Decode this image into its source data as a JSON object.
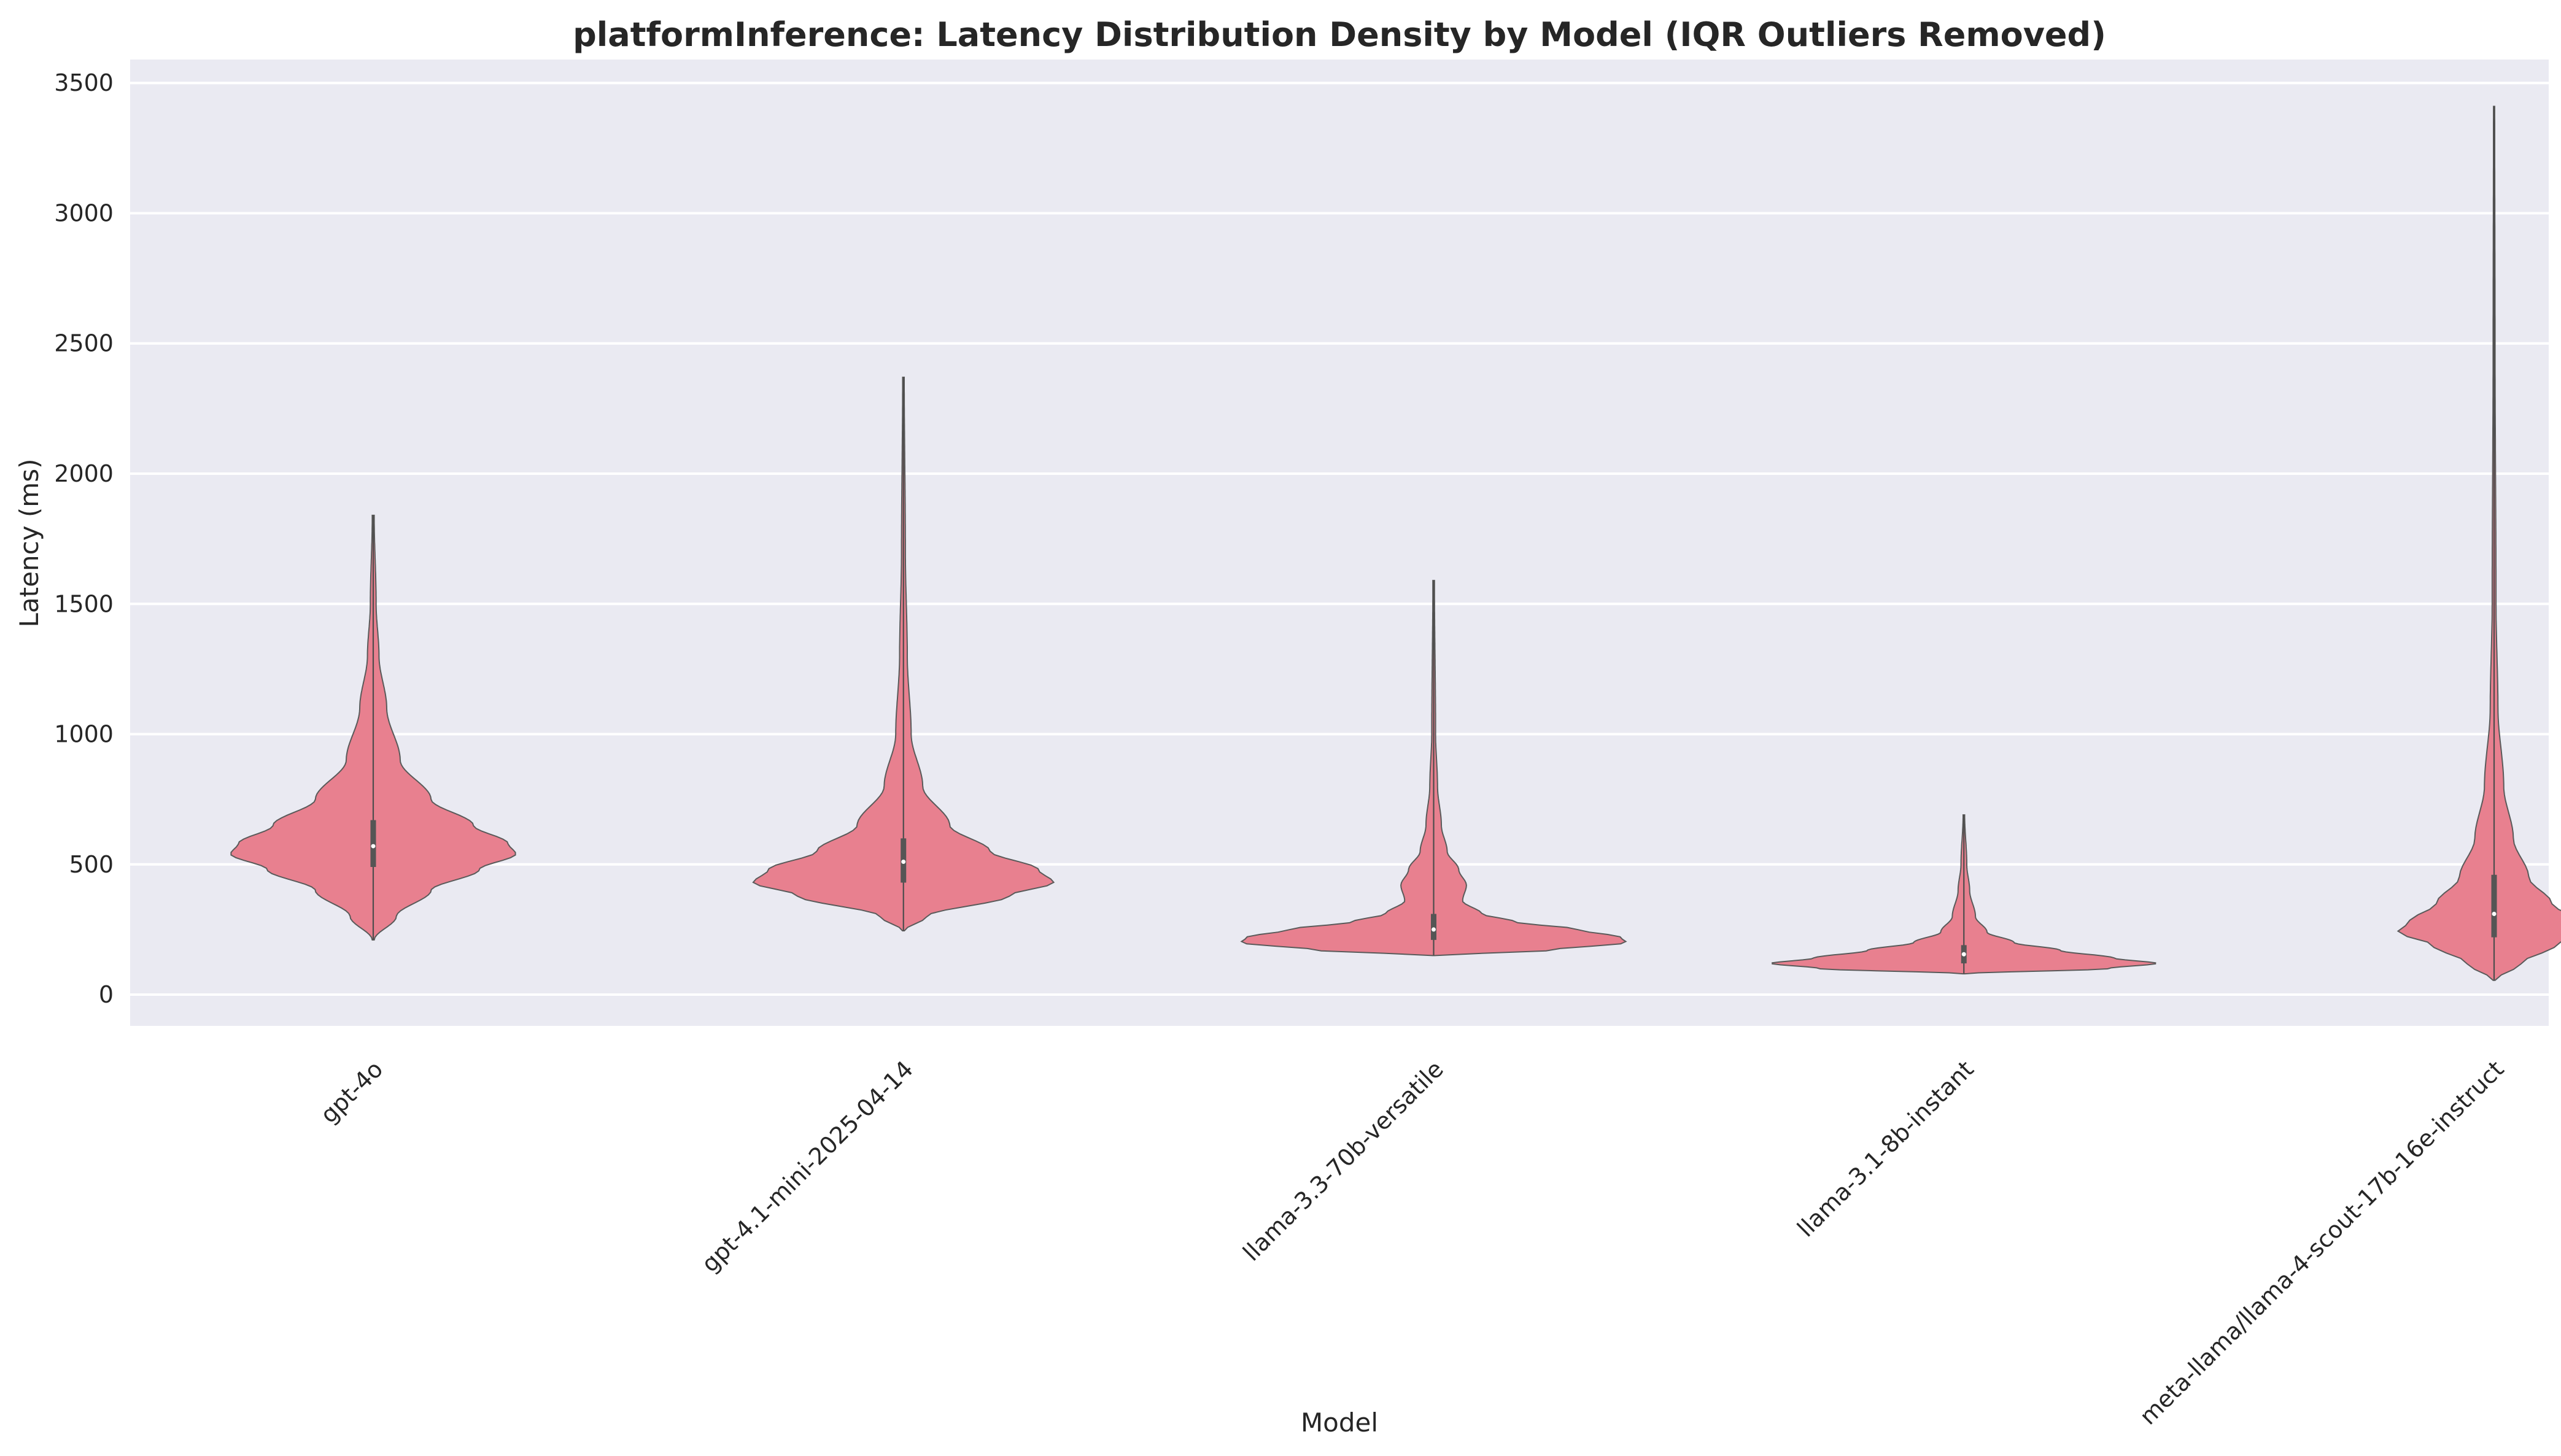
{
  "chart_data": {
    "type": "violin",
    "title": "platformInference: Latency Distribution Density by Model (IQR Outliers Removed)",
    "xlabel": "Model",
    "ylabel": "Latency (ms)",
    "ylim": [
      -120,
      3590
    ],
    "yticks": [
      0,
      500,
      1000,
      1500,
      2000,
      2500,
      3000,
      3500
    ],
    "grid": true,
    "legend": "none",
    "colors": {
      "violin": "#e8808f",
      "background": "#eaeaf2",
      "grid": "#ffffff"
    },
    "categories": [
      "gpt-4o",
      "gpt-4.1-mini-2025-04-14",
      "llama-3.3-70b-versatile",
      "llama-3.1-8b-instant",
      "meta-llama/llama-4-scout-17b-16e-instruct"
    ],
    "series": [
      {
        "category": "gpt-4o",
        "min": 210,
        "max": 1840,
        "q1": 490,
        "median": 570,
        "q3": 670,
        "density": [
          [
            210,
            0.005
          ],
          [
            300,
            0.12
          ],
          [
            400,
            0.3
          ],
          [
            480,
            0.55
          ],
          [
            540,
            0.74
          ],
          [
            580,
            0.7
          ],
          [
            650,
            0.52
          ],
          [
            750,
            0.3
          ],
          [
            900,
            0.14
          ],
          [
            1100,
            0.07
          ],
          [
            1300,
            0.03
          ],
          [
            1500,
            0.015
          ],
          [
            1840,
            0.005
          ]
        ]
      },
      {
        "category": "gpt-4.1-mini-2025-04-14",
        "min": 245,
        "max": 2370,
        "q1": 430,
        "median": 510,
        "q3": 600,
        "density": [
          [
            245,
            0.005
          ],
          [
            300,
            0.12
          ],
          [
            380,
            0.55
          ],
          [
            430,
            0.78
          ],
          [
            480,
            0.7
          ],
          [
            550,
            0.45
          ],
          [
            650,
            0.24
          ],
          [
            800,
            0.1
          ],
          [
            1000,
            0.04
          ],
          [
            1300,
            0.02
          ],
          [
            1700,
            0.01
          ],
          [
            2370,
            0.004
          ]
        ]
      },
      {
        "category": "llama-3.3-70b-versatile",
        "min": 150,
        "max": 1590,
        "q1": 210,
        "median": 250,
        "q3": 310,
        "density": [
          [
            150,
            0.005
          ],
          [
            170,
            0.6
          ],
          [
            200,
            1.0
          ],
          [
            220,
            0.97
          ],
          [
            250,
            0.75
          ],
          [
            280,
            0.42
          ],
          [
            310,
            0.25
          ],
          [
            360,
            0.15
          ],
          [
            420,
            0.17
          ],
          [
            480,
            0.13
          ],
          [
            550,
            0.07
          ],
          [
            650,
            0.04
          ],
          [
            800,
            0.02
          ],
          [
            1000,
            0.01
          ],
          [
            1590,
            0.004
          ]
        ]
      },
      {
        "category": "llama-3.1-8b-instant",
        "min": 80,
        "max": 690,
        "q1": 120,
        "median": 155,
        "q3": 190,
        "density": [
          [
            80,
            0.005
          ],
          [
            100,
            0.75
          ],
          [
            120,
            1.0
          ],
          [
            140,
            0.78
          ],
          [
            170,
            0.5
          ],
          [
            200,
            0.26
          ],
          [
            240,
            0.12
          ],
          [
            300,
            0.06
          ],
          [
            400,
            0.03
          ],
          [
            500,
            0.015
          ],
          [
            690,
            0.004
          ]
        ]
      },
      {
        "category": "meta-llama/llama-4-scout-17b-16e-instruct",
        "min": 55,
        "max": 3410,
        "q1": 220,
        "median": 310,
        "q3": 460,
        "density": [
          [
            55,
            0.005
          ],
          [
            120,
            0.14
          ],
          [
            190,
            0.32
          ],
          [
            240,
            0.5
          ],
          [
            280,
            0.44
          ],
          [
            350,
            0.3
          ],
          [
            450,
            0.18
          ],
          [
            600,
            0.1
          ],
          [
            800,
            0.05
          ],
          [
            1100,
            0.02
          ],
          [
            1500,
            0.01
          ],
          [
            2500,
            0.005
          ],
          [
            3410,
            0.003
          ]
        ]
      }
    ]
  }
}
